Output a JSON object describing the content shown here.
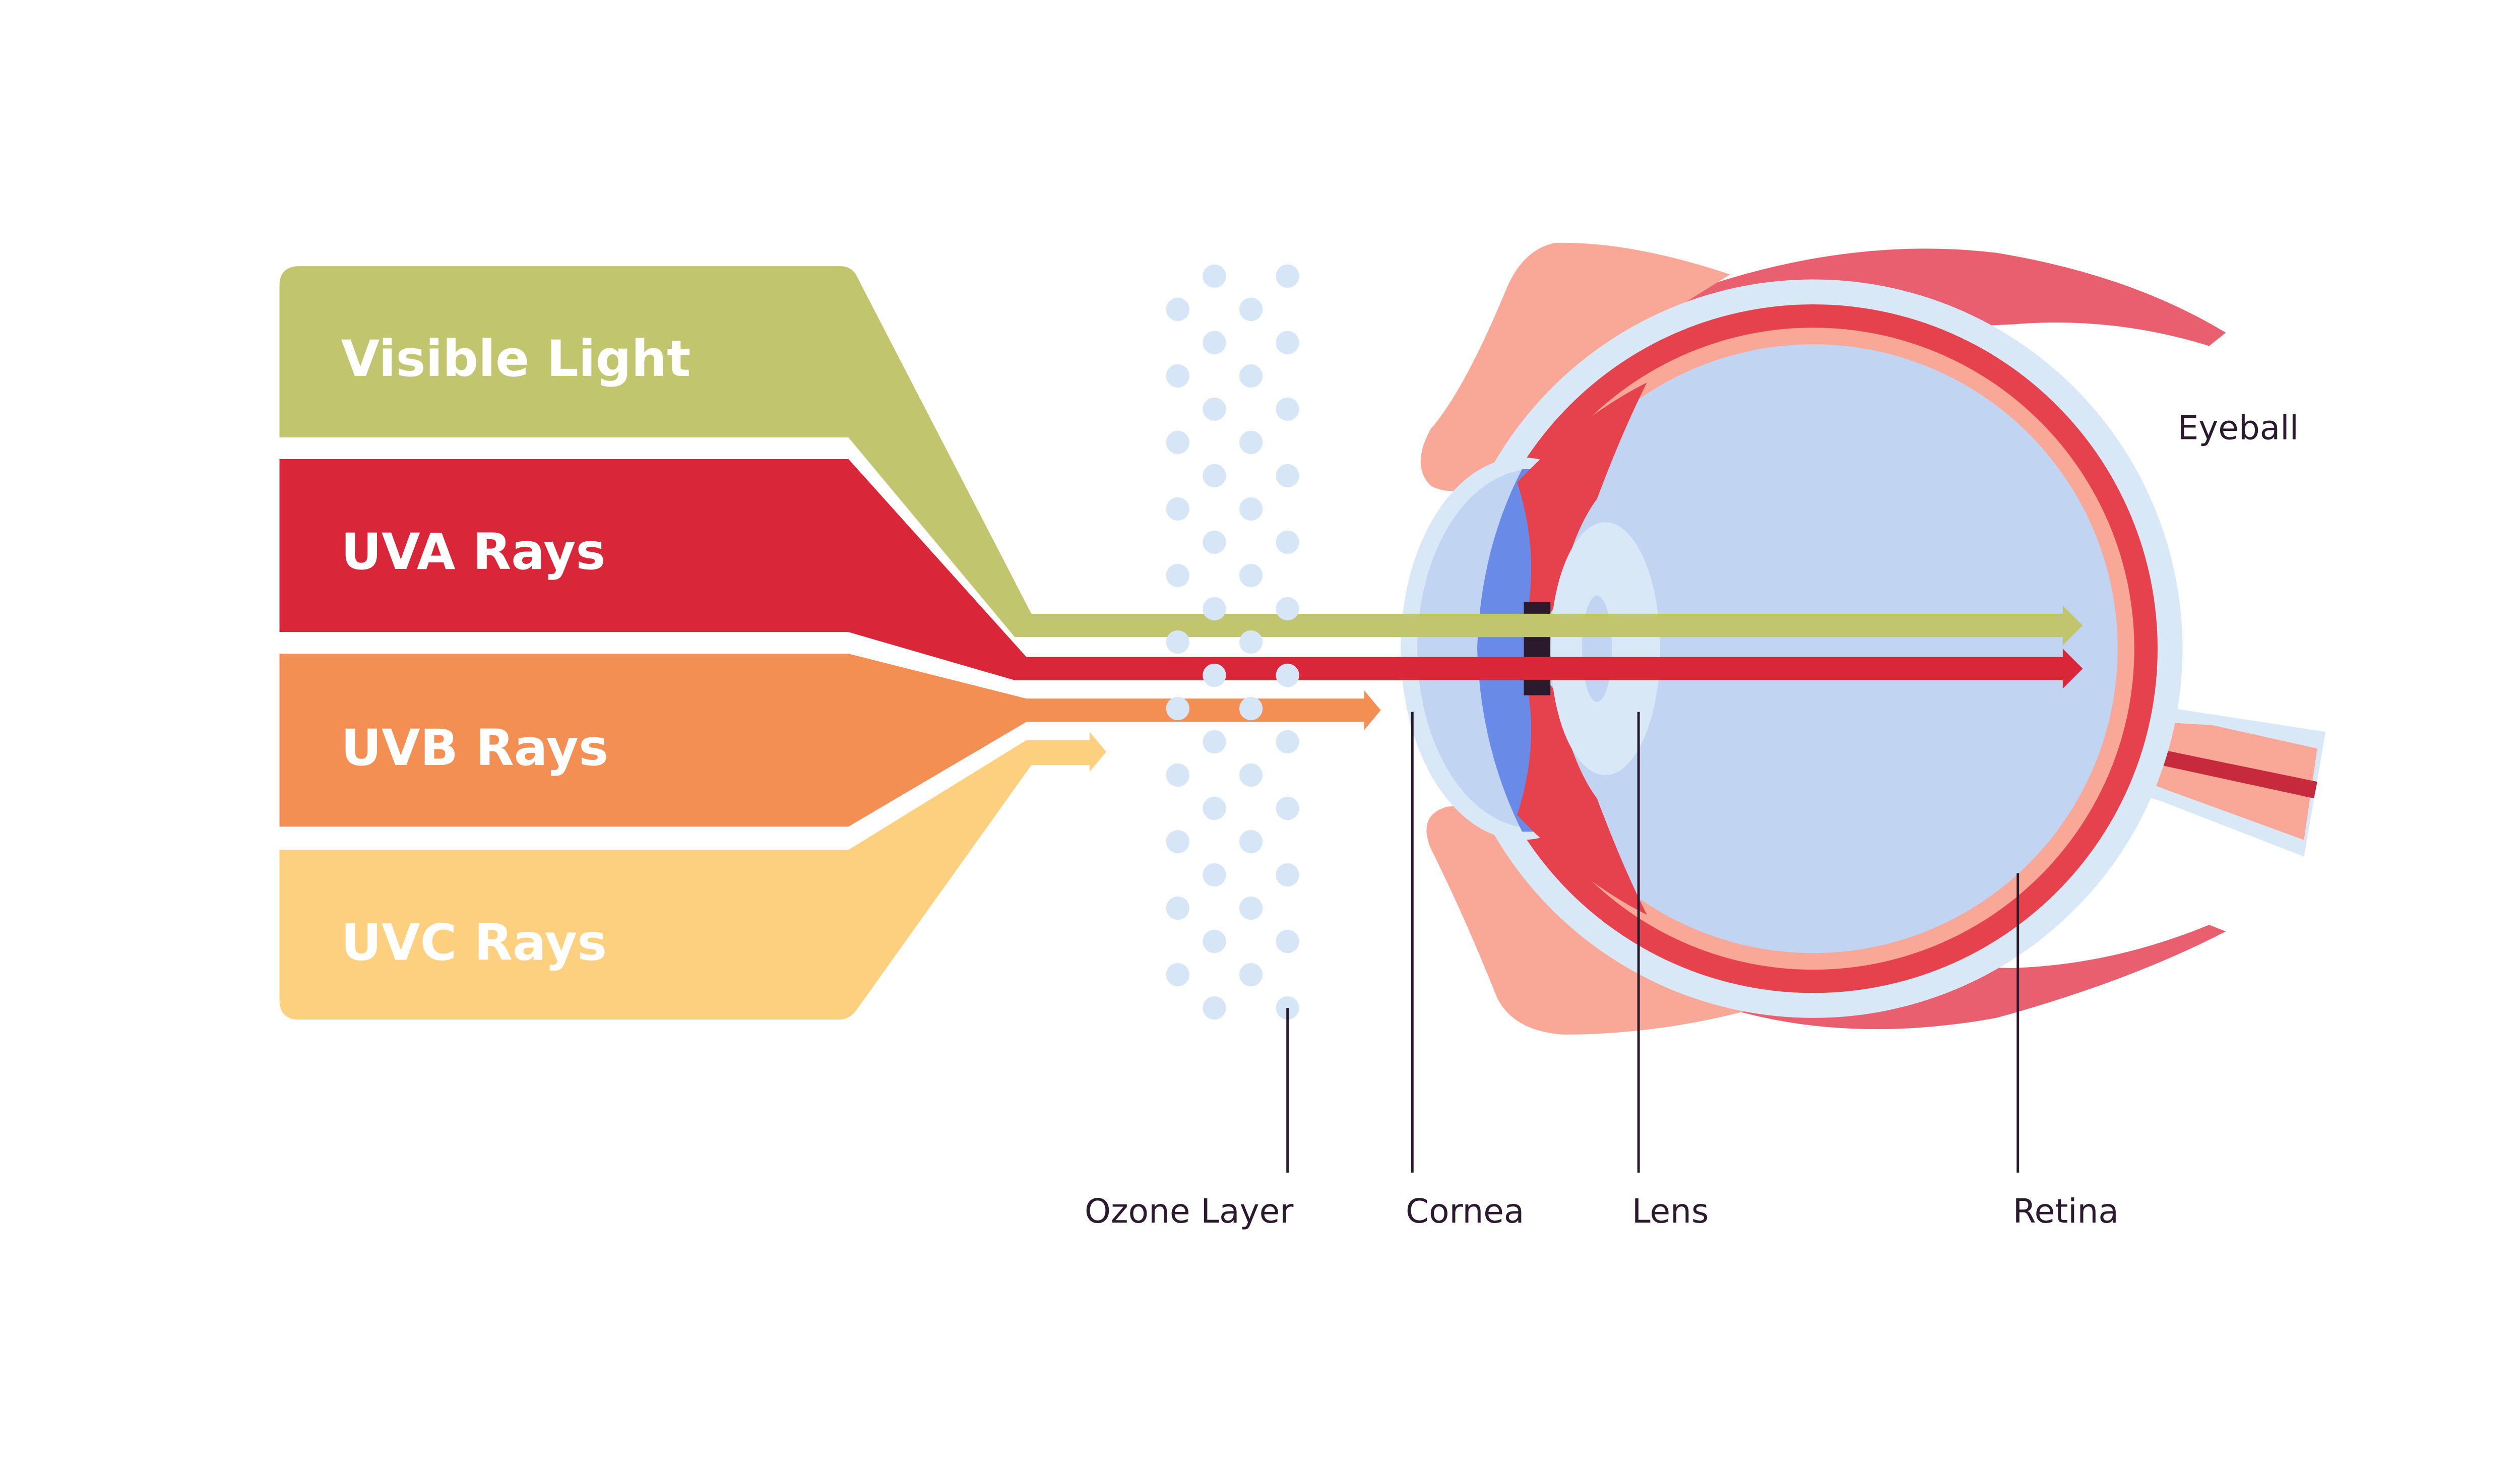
{
  "bands": [
    {
      "label": "Visible Light",
      "color": "#c1c66e"
    },
    {
      "label": "UVA Rays",
      "color": "#d92638"
    },
    {
      "label": "UVB Rays",
      "color": "#f38f52"
    },
    {
      "label": "UVC Rays",
      "color": "#fcd07e"
    }
  ],
  "labels": {
    "ozone": "Ozone Layer",
    "cornea": "Cornea",
    "lens": "Lens",
    "retina": "Retina",
    "eyeball": "Eyeball"
  },
  "colors": {
    "sclera": "#d9e8f6",
    "choroid": "#e5424d",
    "retina": "#f9a898",
    "vitreous": "#c1d4f2",
    "iris": "#6a8ae8",
    "pupil": "#2b1a2e",
    "muscle": "#e8606f",
    "ozone_dots": "#d6e6f6"
  }
}
